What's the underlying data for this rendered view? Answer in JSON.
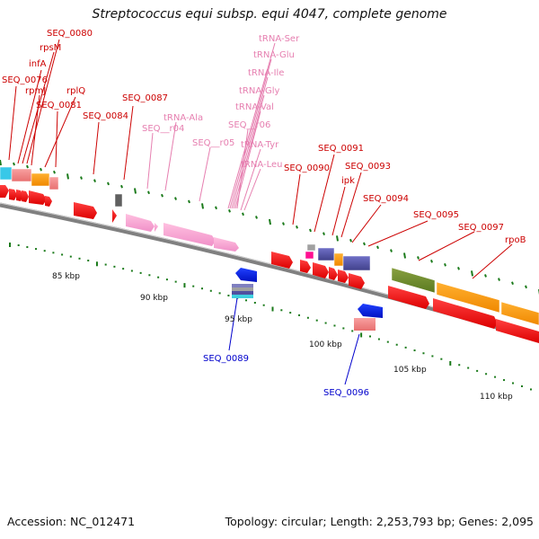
{
  "title": "Streptococcus equi subsp. equi 4047, complete genome",
  "footer": {
    "accession": "Accession: NC_012471",
    "summary": "Topology: circular; Length: 2,253,793 bp; Genes: 2,095"
  },
  "colors": {
    "red_label": "#cc0000",
    "pink_label": "#e67fb0",
    "blue_label": "#0000cc",
    "backbone": "#808080",
    "tick": "#1a7a1a"
  },
  "scale_labels": [
    "85 kbp",
    "90 kbp",
    "95 kbp",
    "100 kbp",
    "105 kbp",
    "110 kbp"
  ],
  "forward_labels": [
    "SEQ_0080",
    "rpsM",
    "infA",
    "SEQ_0076",
    "rpmJ",
    "rplQ",
    "SEQ_0081",
    "SEQ_0087",
    "SEQ_0084",
    "SEQ_0091",
    "SEQ_0090",
    "SEQ_0093",
    "ipk",
    "SEQ_0094",
    "SEQ_0095",
    "SEQ_0097",
    "rpoB"
  ],
  "rna_labels": [
    "tRNA-Ser",
    "tRNA-Glu",
    "tRNA-Ile",
    "tRNA-Gly",
    "tRNA-Val",
    "tRNA-Ala",
    "SEQ__r04",
    "SEQ__r06",
    "SEQ__r05",
    "tRNA-Tyr",
    "tRNA-Leu"
  ],
  "reverse_labels": [
    "SEQ_0089",
    "SEQ_0096"
  ]
}
